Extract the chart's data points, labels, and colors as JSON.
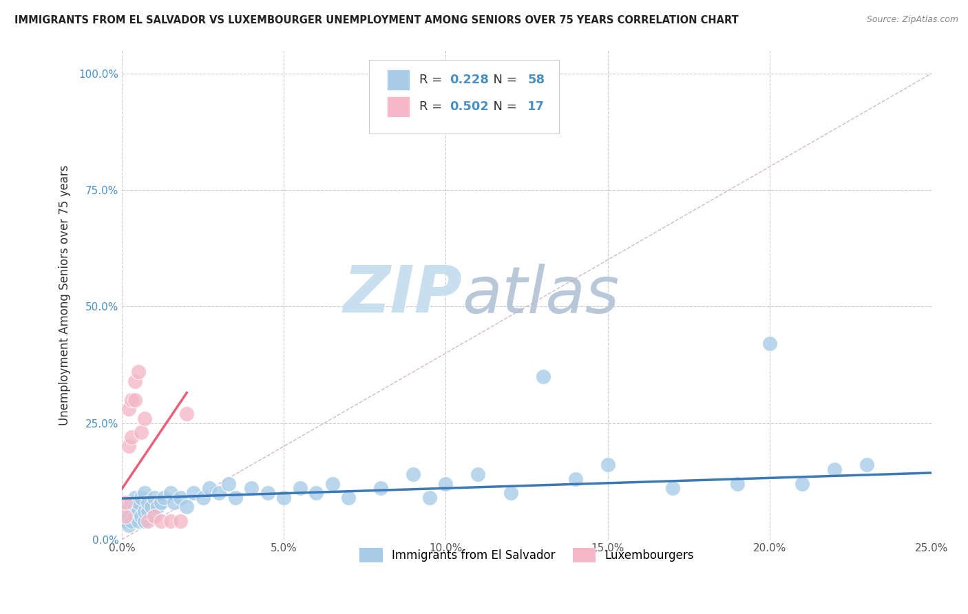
{
  "title": "IMMIGRANTS FROM EL SALVADOR VS LUXEMBOURGER UNEMPLOYMENT AMONG SENIORS OVER 75 YEARS CORRELATION CHART",
  "source": "Source: ZipAtlas.com",
  "ylabel": "Unemployment Among Seniors over 75 years",
  "xlim": [
    0.0,
    0.25
  ],
  "ylim": [
    0.0,
    1.05
  ],
  "xticks": [
    0.0,
    0.05,
    0.1,
    0.15,
    0.2,
    0.25
  ],
  "xtick_labels": [
    "0.0%",
    "5.0%",
    "10.0%",
    "15.0%",
    "20.0%",
    "25.0%"
  ],
  "yticks": [
    0.0,
    0.25,
    0.5,
    0.75,
    1.0
  ],
  "ytick_labels": [
    "0.0%",
    "25.0%",
    "50.0%",
    "75.0%",
    "100.0%"
  ],
  "blue_R": 0.228,
  "blue_N": 58,
  "pink_R": 0.502,
  "pink_N": 17,
  "blue_color": "#a8cce8",
  "pink_color": "#f4b8c8",
  "blue_line_color": "#3a78b8",
  "pink_line_color": "#e8607a",
  "diag_line_color": "#d0b0c0",
  "blue_scatter_x": [
    0.001,
    0.001,
    0.002,
    0.002,
    0.003,
    0.003,
    0.003,
    0.004,
    0.004,
    0.004,
    0.005,
    0.005,
    0.005,
    0.006,
    0.006,
    0.007,
    0.007,
    0.007,
    0.008,
    0.008,
    0.009,
    0.01,
    0.01,
    0.011,
    0.012,
    0.013,
    0.015,
    0.016,
    0.018,
    0.02,
    0.022,
    0.025,
    0.027,
    0.03,
    0.033,
    0.035,
    0.04,
    0.045,
    0.05,
    0.055,
    0.06,
    0.065,
    0.07,
    0.08,
    0.09,
    0.095,
    0.1,
    0.11,
    0.12,
    0.13,
    0.14,
    0.15,
    0.17,
    0.19,
    0.2,
    0.21,
    0.22,
    0.23
  ],
  "blue_scatter_y": [
    0.04,
    0.06,
    0.03,
    0.05,
    0.04,
    0.06,
    0.08,
    0.05,
    0.07,
    0.09,
    0.04,
    0.06,
    0.08,
    0.05,
    0.09,
    0.04,
    0.06,
    0.1,
    0.06,
    0.08,
    0.07,
    0.05,
    0.09,
    0.07,
    0.08,
    0.09,
    0.1,
    0.08,
    0.09,
    0.07,
    0.1,
    0.09,
    0.11,
    0.1,
    0.12,
    0.09,
    0.11,
    0.1,
    0.09,
    0.11,
    0.1,
    0.12,
    0.09,
    0.11,
    0.14,
    0.09,
    0.12,
    0.14,
    0.1,
    0.35,
    0.13,
    0.16,
    0.11,
    0.12,
    0.42,
    0.12,
    0.15,
    0.16
  ],
  "pink_scatter_x": [
    0.001,
    0.001,
    0.002,
    0.002,
    0.003,
    0.003,
    0.004,
    0.004,
    0.005,
    0.006,
    0.007,
    0.008,
    0.01,
    0.012,
    0.015,
    0.018,
    0.02
  ],
  "pink_scatter_y": [
    0.05,
    0.08,
    0.2,
    0.28,
    0.22,
    0.3,
    0.3,
    0.34,
    0.36,
    0.23,
    0.26,
    0.04,
    0.05,
    0.04,
    0.04,
    0.04,
    0.27
  ],
  "watermark_zip": "ZIP",
  "watermark_atlas": "atlas",
  "watermark_color_zip": "#c8dff0",
  "watermark_color_atlas": "#b8c8d8",
  "background_color": "#ffffff",
  "grid_color": "#cccccc",
  "ytick_color": "#4a90c4",
  "xtick_color": "#555555"
}
